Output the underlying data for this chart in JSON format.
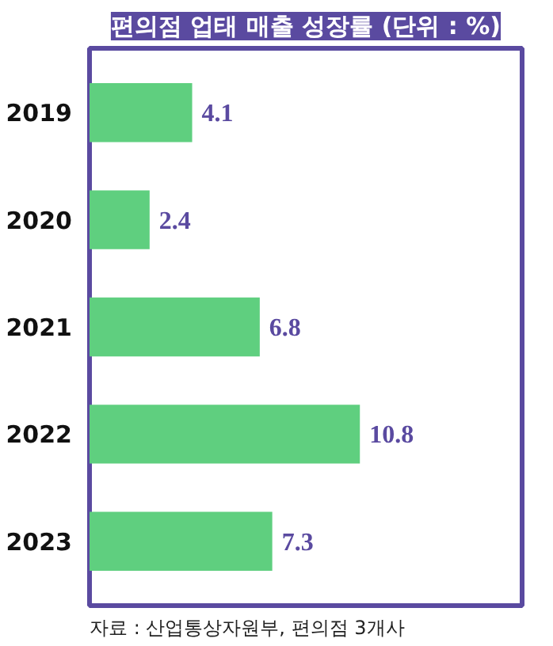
{
  "chart_data": {
    "type": "bar",
    "orientation": "horizontal",
    "title": "편의점 업태 매출 성장률 (단위 : %)",
    "categories": [
      "2019",
      "2020",
      "2021",
      "2022",
      "2023"
    ],
    "values": [
      4.1,
      2.4,
      6.8,
      10.8,
      7.3
    ],
    "color": "#5fcf7f",
    "data_labels": true,
    "tick_labels": "y",
    "annotations": [
      "자료 : 산업통상자원부, 편의점 3개사"
    ]
  }
}
